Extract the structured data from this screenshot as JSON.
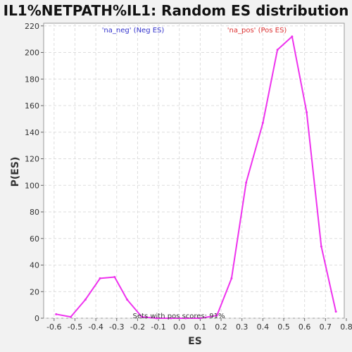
{
  "chart_data": {
    "type": "line",
    "title": "IL1%NETPATH%IL1: Random ES distribution",
    "xlabel": "ES",
    "ylabel": "P(ES)",
    "xlim": [
      -0.65,
      0.79
    ],
    "ylim": [
      0,
      222
    ],
    "x_ticks": [
      -0.6,
      -0.5,
      -0.4,
      -0.3,
      -0.2,
      -0.1,
      0.0,
      0.1,
      0.2,
      0.3,
      0.4,
      0.5,
      0.6,
      0.7,
      0.8
    ],
    "x_tick_labels": [
      "-0.6",
      "-0.5",
      "-0.4",
      "-0.3",
      "-0.2",
      "-0.1",
      "0.0",
      "0.1",
      "0.2",
      "0.3",
      "0.4",
      "0.5",
      "0.6",
      "0.7",
      "0.8"
    ],
    "y_ticks": [
      0,
      20,
      40,
      60,
      80,
      100,
      120,
      140,
      160,
      180,
      200,
      220
    ],
    "y_tick_labels": [
      "0",
      "20",
      "40",
      "60",
      "80",
      "100",
      "120",
      "140",
      "160",
      "180",
      "200",
      "220"
    ],
    "grid": true,
    "series": [
      {
        "color": "#ee33ee",
        "x": [
          -0.59,
          -0.52,
          -0.45,
          -0.38,
          -0.31,
          -0.25,
          -0.18,
          -0.11,
          -0.04,
          0.03,
          0.1,
          0.18,
          0.25,
          0.32,
          0.4,
          0.47,
          0.54,
          0.61,
          0.68,
          0.75
        ],
        "y": [
          3,
          1,
          14,
          30,
          31,
          14,
          1,
          0,
          0,
          0,
          0,
          2,
          30,
          102,
          147,
          202,
          212,
          155,
          54,
          5
        ]
      }
    ],
    "annotations": [
      {
        "text": "'na_neg' (Neg ES)",
        "color": "#3333cc"
      },
      {
        "text": "'na_pos' (Pos ES)",
        "color": "#dd3333"
      },
      {
        "text": "Sets with pos scores: 91%",
        "color": "#333333"
      }
    ]
  }
}
